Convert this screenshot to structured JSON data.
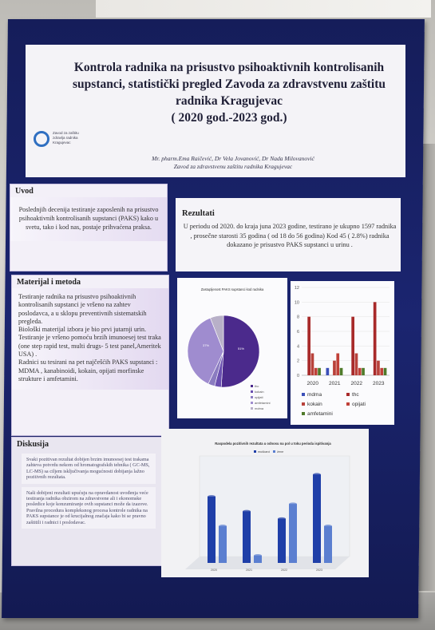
{
  "poster": {
    "title": "Kontrola radnika na prisustvo psihoaktivnih kontrolisanih supstanci, statistički pregled Zavoda za zdravstvenu zaštitu radnika Kragujevac",
    "period": "( 2020 god.-2023 god.)",
    "authors": "Mr. pharm.Ema Raičević, Dr Vela Jovanović, Dr Nada Milovanović",
    "institution": "Zavod za zdravstvenu zaštitu radnika Kragujevac",
    "logo_text": "Zavod za zaštitu zdravlja radnika Kragujevac"
  },
  "uvod": {
    "heading": "Uvod",
    "body": "Poslednjih decenija testiranje zaposlenih na prisustvo psihoaktivnih kontrolisanih supstanci (PAKS) kako u svetu, tako i kod nas, postaje prihvaćena praksa."
  },
  "materijal": {
    "heading": "Materijal i metoda",
    "p1": "Testiranje radnika na prisustvo psihoaktivnih kontrolisanih supstanci je vršeno na zahtev poslodavca, a u sklopu preventivnih sistematskih pregleda.",
    "p2": "Biološki materijal izbora je bio prvi jutarnji urin.",
    "p3": "Testiranje je vršeno pomoću brzih imunoesej test traka (one step rapid test, multi drugs- 5 test panel,Ameritek USA) .",
    "p4": "Radnici su tesirani na pet najčešćih PAKS supstanci :",
    "p5": "MDMA , kanabinoidi, kokain, opijati morfinske strukture i amfetamini."
  },
  "diskusija": {
    "heading": "Diskusija",
    "p1": "Svaki pozitivan rezultat dobijen brzim imunoesej test trakama zahteva potvrdu nekom od hromatografskih tehnika ( GC-MS, LC-MS) sa ciljem isključivanja mogućnosti dobijanja lažno pozitivnih rezultata.",
    "p2": "Naši dobijeni rezultati upućuju na opravdanost uvođenja veće testiranja radnika obzirom na zdravstvene ali i ekonomske posledice koje konzumiranje ovih supstanci može da izazove. Pravilna procedura kompleksnog procesa kontrole radnika na PAKS supstance je od krucijalnog značaja kako bi se pravno zaštitili i radnici i poslodavac."
  },
  "rezultati": {
    "heading": "Rezultati",
    "body": "U periodu od 2020. do kraja juna 2023 godine, testirano je ukupno 1597 radnika , prosečne starosti 35 godina ( od 18 do 56 godina) Kod 45 ( 2.8%) radnika dokazano je prisustvo PAKS supstanci u urinu ."
  },
  "chart_data": [
    {
      "type": "pie",
      "title": "Zastupljenost PAKS supstanci kod radnika",
      "slices": [
        {
          "name": "thc",
          "value": 51,
          "color": "#4b2a8c"
        },
        {
          "name": "kokain",
          "value": 3,
          "color": "#6a4fb0"
        },
        {
          "name": "opijati",
          "value": 3,
          "color": "#8a7bc0"
        },
        {
          "name": "amfetamini",
          "value": 37,
          "color": "#9f8ccf"
        },
        {
          "name": "mdma",
          "value": 6,
          "color": "#b8b0c8"
        }
      ],
      "data_labels": [
        "51%",
        "37%"
      ]
    },
    {
      "type": "bar",
      "categories": [
        "2020",
        "2021",
        "2022",
        "2023"
      ],
      "ylim": [
        0,
        12
      ],
      "yticks": [
        0,
        2,
        4,
        6,
        8,
        10,
        12
      ],
      "series": [
        {
          "name": "mdma",
          "values": [
            0,
            1,
            0,
            0
          ],
          "color": "#3b4fb8"
        },
        {
          "name": "thc",
          "values": [
            8,
            0,
            8,
            10
          ],
          "color": "#a82a2a"
        },
        {
          "name": "kokain",
          "values": [
            3,
            2,
            3,
            2
          ],
          "color": "#b8413a"
        },
        {
          "name": "opijati",
          "values": [
            1,
            3,
            1,
            1
          ],
          "color": "#c04038"
        },
        {
          "name": "amfetamini",
          "values": [
            1,
            1,
            1,
            1
          ],
          "color": "#4f7a2a"
        }
      ]
    },
    {
      "type": "bar",
      "title": "Raspodela pozitivnih rezultata u odnosu na pol u toku perioda ispitivanja",
      "categories": [
        "2020",
        "2021",
        "2022",
        "2023"
      ],
      "series": [
        {
          "name": "muškarci",
          "values": [
            9,
            7,
            6,
            12
          ],
          "color": "#1f3fa8"
        },
        {
          "name": "žene",
          "values": [
            5,
            1,
            8,
            5
          ],
          "color": "#5b7fd0"
        }
      ]
    }
  ]
}
